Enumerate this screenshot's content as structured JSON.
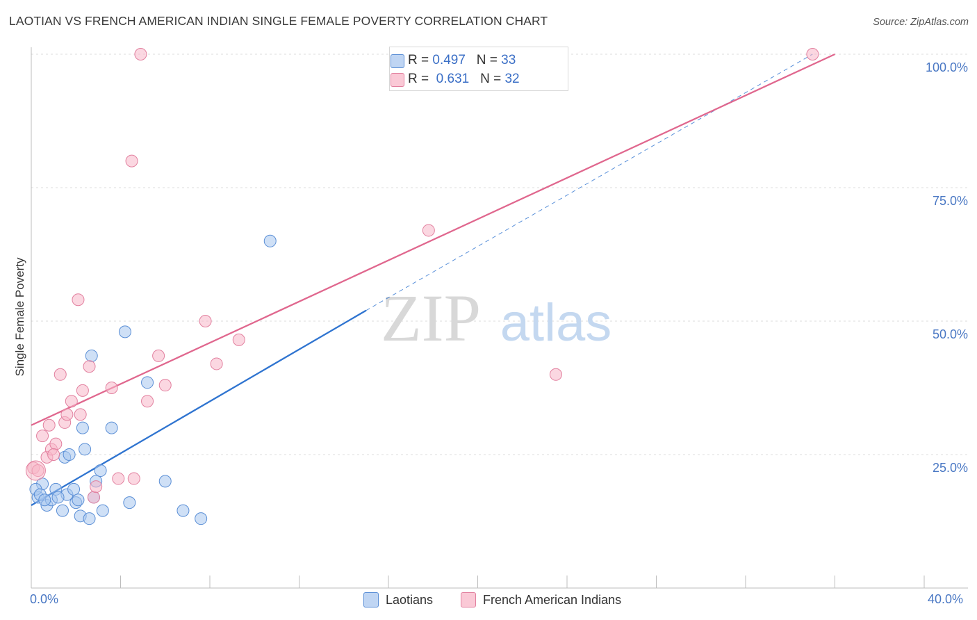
{
  "title": "LAOTIAN VS FRENCH AMERICAN INDIAN SINGLE FEMALE POVERTY CORRELATION CHART",
  "source": "Source: ZipAtlas.com",
  "watermark": {
    "zip": "ZIP",
    "atlas": "atlas"
  },
  "legend": {
    "series1": {
      "r_label": "R =",
      "r_value": "0.497",
      "n_label": "N =",
      "n_value": "33",
      "color": "#a8c6ee",
      "edge": "#5b8fd6"
    },
    "series2": {
      "r_label": "R =",
      "r_value": "0.631",
      "n_label": "N =",
      "n_value": "32",
      "color": "#f7b7c8",
      "edge": "#e2809f"
    }
  },
  "chart_data": {
    "type": "scatter",
    "title": "LAOTIAN VS FRENCH AMERICAN INDIAN SINGLE FEMALE POVERTY CORRELATION CHART",
    "xlabel": "",
    "ylabel": "Single Female Poverty",
    "xlim": [
      0,
      40
    ],
    "ylim": [
      0,
      100
    ],
    "x_tick_labels": {
      "left": "0.0%",
      "right": "40.0%"
    },
    "y_ticks": [
      25,
      50,
      75,
      100
    ],
    "y_tick_labels": [
      "25.0%",
      "50.0%",
      "75.0%",
      "100.0%"
    ],
    "series": [
      {
        "name": "Laotians",
        "color": "#a8c6ee",
        "edge": "#5b8fd6",
        "line_color": "#2f74d0",
        "trend": {
          "x0": 0.0,
          "y0": 15.5,
          "x1": 15.0,
          "y1": 52.0,
          "dash_x1": 35.0,
          "dash_y1": 100.0
        },
        "points": [
          [
            0.3,
            17.0
          ],
          [
            0.5,
            19.5
          ],
          [
            0.7,
            15.5
          ],
          [
            0.9,
            16.5
          ],
          [
            1.1,
            18.5
          ],
          [
            1.4,
            14.5
          ],
          [
            1.5,
            24.5
          ],
          [
            1.6,
            17.5
          ],
          [
            1.7,
            25.0
          ],
          [
            1.9,
            18.5
          ],
          [
            2.0,
            16.0
          ],
          [
            2.1,
            16.5
          ],
          [
            2.2,
            13.5
          ],
          [
            2.3,
            30.0
          ],
          [
            2.4,
            26.0
          ],
          [
            2.6,
            13.0
          ],
          [
            2.7,
            43.5
          ],
          [
            2.8,
            17.0
          ],
          [
            2.9,
            20.0
          ],
          [
            3.1,
            22.0
          ],
          [
            3.2,
            14.5
          ],
          [
            3.6,
            30.0
          ],
          [
            4.2,
            48.0
          ],
          [
            4.4,
            16.0
          ],
          [
            5.2,
            38.5
          ],
          [
            6.0,
            20.0
          ],
          [
            6.8,
            14.5
          ],
          [
            7.6,
            13.0
          ],
          [
            10.7,
            65.0
          ],
          [
            0.2,
            18.5
          ],
          [
            0.4,
            17.5
          ],
          [
            1.2,
            17.0
          ],
          [
            0.6,
            16.5
          ]
        ]
      },
      {
        "name": "French American Indians",
        "color": "#f7b7c8",
        "edge": "#e2809f",
        "line_color": "#e0678e",
        "trend": {
          "x0": 0.0,
          "y0": 30.5,
          "x1": 36.0,
          "y1": 100.0
        },
        "points": [
          [
            0.1,
            22.5
          ],
          [
            0.5,
            28.5
          ],
          [
            0.7,
            24.5
          ],
          [
            0.8,
            30.5
          ],
          [
            0.9,
            26.0
          ],
          [
            1.1,
            27.0
          ],
          [
            1.3,
            40.0
          ],
          [
            1.5,
            31.0
          ],
          [
            1.6,
            32.5
          ],
          [
            1.8,
            35.0
          ],
          [
            2.1,
            54.0
          ],
          [
            2.2,
            32.5
          ],
          [
            2.3,
            37.0
          ],
          [
            2.6,
            41.5
          ],
          [
            2.8,
            17.0
          ],
          [
            2.9,
            19.0
          ],
          [
            3.6,
            37.5
          ],
          [
            3.9,
            20.5
          ],
          [
            4.5,
            80.0
          ],
          [
            4.6,
            20.5
          ],
          [
            4.9,
            100.0
          ],
          [
            5.2,
            35.0
          ],
          [
            5.7,
            43.5
          ],
          [
            6.0,
            38.0
          ],
          [
            7.8,
            50.0
          ],
          [
            8.3,
            42.0
          ],
          [
            9.3,
            46.5
          ],
          [
            17.8,
            67.0
          ],
          [
            23.5,
            40.0
          ],
          [
            35.0,
            100.0
          ],
          [
            0.3,
            22.0
          ],
          [
            1.0,
            25.0
          ]
        ]
      }
    ]
  },
  "bottom_legend": {
    "series1": "Laotians",
    "series2": "French American Indians"
  }
}
